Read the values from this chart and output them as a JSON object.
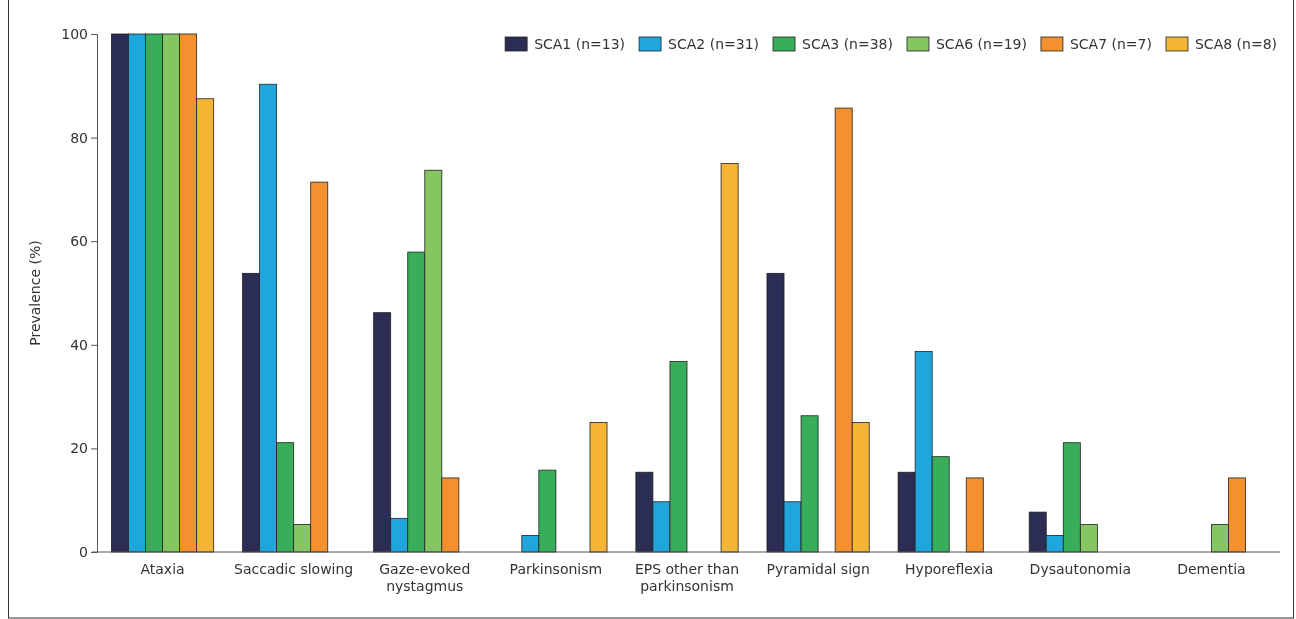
{
  "chart_data": {
    "type": "bar",
    "ylabel": "Prevalence (%)",
    "categories": [
      "Ataxia",
      "Saccadic slowing",
      "Gaze-evoked nystagmus",
      "Parkinsonism",
      "EPS other than parkinsonism",
      "Pyramidal sign",
      "Hyporeflexia",
      "Dysautonomia",
      "Dementia"
    ],
    "series": [
      {
        "name": "SCA1 (n=13)",
        "color": "#2b2d54",
        "values": [
          100,
          53.8,
          46.2,
          0,
          15.4,
          53.8,
          15.4,
          7.7,
          0
        ]
      },
      {
        "name": "SCA2 (n=31)",
        "color": "#1fa7dd",
        "values": [
          100,
          90.3,
          6.5,
          3.2,
          9.7,
          9.7,
          38.7,
          3.2,
          0
        ]
      },
      {
        "name": "SCA3 (n=38)",
        "color": "#38ad5a",
        "values": [
          100,
          21.1,
          57.9,
          15.8,
          36.8,
          26.3,
          18.4,
          21.1,
          0
        ]
      },
      {
        "name": "SCA6 (n=19)",
        "color": "#86c662",
        "values": [
          100,
          5.3,
          73.7,
          0,
          0,
          0,
          0,
          5.3,
          5.3
        ]
      },
      {
        "name": "SCA7 (n=7)",
        "color": "#f5902f",
        "values": [
          100,
          71.4,
          14.3,
          0,
          0,
          85.7,
          14.3,
          0,
          14.3
        ]
      },
      {
        "name": "SCA8 (n=8)",
        "color": "#f4b537",
        "values": [
          87.5,
          0,
          0,
          25,
          75,
          25,
          0,
          0,
          0
        ]
      }
    ],
    "ylim": [
      0,
      100
    ],
    "yticks": [
      0,
      20,
      40,
      60,
      80,
      100
    ],
    "grid": false,
    "legend": "top right"
  }
}
